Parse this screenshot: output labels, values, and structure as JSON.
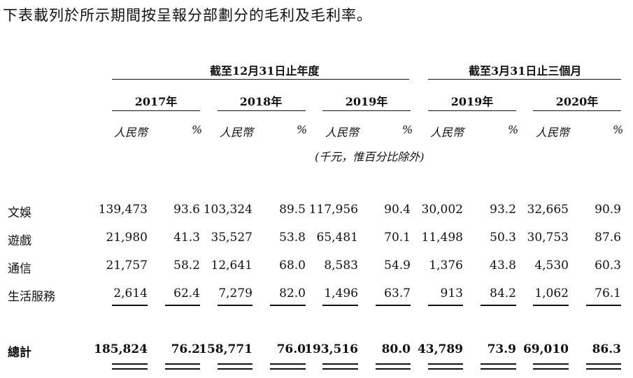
{
  "intro": "下表載列於所示期間按呈報分部劃分的毛利及毛利率。",
  "groups": {
    "year_ended": "截至12月31日止年度",
    "three_months": "截至3月31日止三個月"
  },
  "years": [
    "2017年",
    "2018年",
    "2019年",
    "2019年",
    "2020年"
  ],
  "unit_labels": {
    "currency": "人民幣",
    "percent": "%"
  },
  "unit_note": "(千元，惟百分比除外)",
  "rows": [
    {
      "label": "文娛",
      "cells": [
        "139,473",
        "93.6",
        "103,324",
        "89.5",
        "117,956",
        "90.4",
        "30,002",
        "93.2",
        "32,665",
        "90.9"
      ]
    },
    {
      "label": "遊戲",
      "cells": [
        "21,980",
        "41.3",
        "35,527",
        "53.8",
        "65,481",
        "70.1",
        "11,498",
        "50.3",
        "30,753",
        "87.6"
      ]
    },
    {
      "label": "通信",
      "cells": [
        "21,757",
        "58.2",
        "12,641",
        "68.0",
        "8,583",
        "54.9",
        "1,376",
        "43.8",
        "4,530",
        "60.3"
      ]
    },
    {
      "label": "生活服務",
      "cells": [
        "2,614",
        "62.4",
        "7,279",
        "82.0",
        "1,496",
        "63.7",
        "913",
        "84.2",
        "1,062",
        "76.1"
      ]
    }
  ],
  "total": {
    "label": "總計",
    "cells": [
      "185,824",
      "76.2",
      "158,771",
      "76.0",
      "193,516",
      "80.0",
      "43,789",
      "73.9",
      "69,010",
      "86.3"
    ]
  }
}
